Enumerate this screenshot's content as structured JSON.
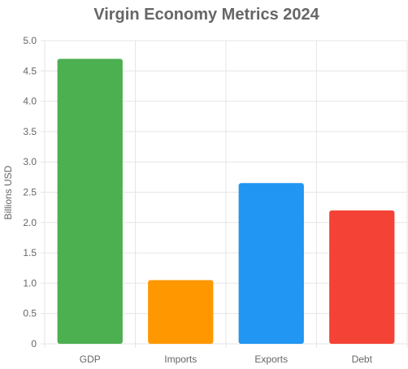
{
  "chart_data": {
    "type": "bar",
    "title": "Virgin Economy Metrics 2024",
    "xlabel": "",
    "ylabel": "Billions USD",
    "categories": [
      "GDP",
      "Imports",
      "Exports",
      "Debt"
    ],
    "values": [
      4.7,
      1.05,
      2.65,
      2.2
    ],
    "colors": [
      "#4caf50",
      "#ff9800",
      "#2196f3",
      "#f44336"
    ],
    "ylim": [
      0,
      5
    ],
    "yticks": [
      "0",
      "0.5",
      "1.0",
      "1.5",
      "2.0",
      "2.5",
      "3.0",
      "3.5",
      "4.0",
      "4.5",
      "5.0"
    ],
    "grid": true,
    "legend": "none"
  }
}
